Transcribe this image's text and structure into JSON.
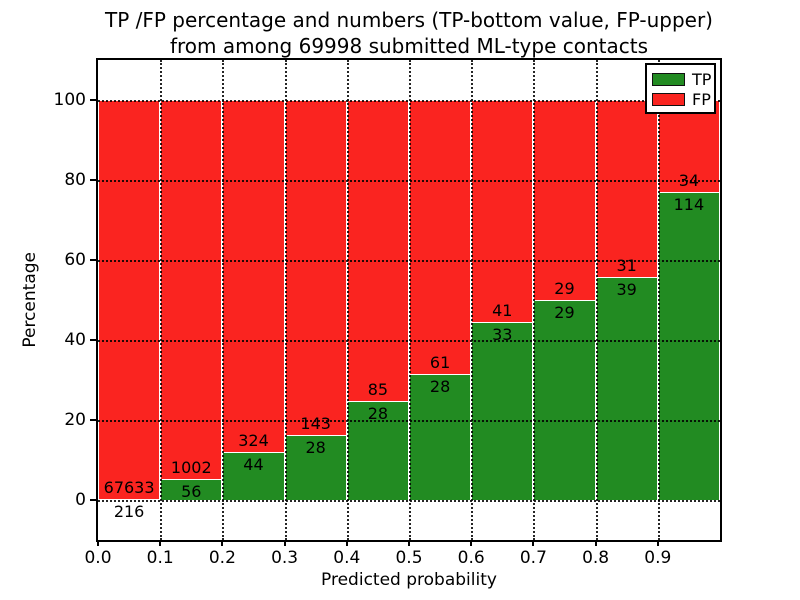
{
  "figure": {
    "title_line1": "TP /FP percentage and numbers (TP-bottom value, FP-upper)",
    "title_line2": "from among 69998 submitted ML-type contacts"
  },
  "axes": {
    "xlabel": "Predicted probability",
    "ylabel": "Percentage",
    "x_tick_labels": [
      "0.0",
      "0.1",
      "0.2",
      "0.3",
      "0.4",
      "0.5",
      "0.6",
      "0.7",
      "0.8",
      "0.9"
    ],
    "x_tick_values": [
      0.0,
      0.1,
      0.2,
      0.3,
      0.4,
      0.5,
      0.6,
      0.7,
      0.8,
      0.9
    ],
    "y_tick_labels": [
      "0",
      "20",
      "40",
      "60",
      "80",
      "100"
    ],
    "y_tick_values": [
      0,
      20,
      40,
      60,
      80,
      100
    ],
    "xlim": [
      0.0,
      1.0
    ],
    "ylim": [
      -10,
      110
    ],
    "grid": "dotted black, vertical at each 0.1, horizontal at each y tick"
  },
  "legend": {
    "position": "upper right",
    "items": [
      {
        "label": "TP",
        "color": "#228b22"
      },
      {
        "label": "FP",
        "color": "#fa2420"
      }
    ]
  },
  "chart_data": {
    "type": "bar",
    "stacked": true,
    "normalization": "each bin stacked to 100%",
    "title": "TP /FP percentage and numbers (TP-bottom value, FP-upper) from among 69998 submitted ML-type contacts",
    "xlabel": "Predicted probability",
    "ylabel": "Percentage",
    "xlim": [
      0.0,
      1.0
    ],
    "ylim": [
      -10,
      110
    ],
    "bin_edges": [
      0.0,
      0.1,
      0.2,
      0.3,
      0.4,
      0.5,
      0.6,
      0.7,
      0.8,
      0.9,
      1.0
    ],
    "series": [
      {
        "name": "TP",
        "stack_position": "bottom",
        "color": "#228b22",
        "counts": [
          216,
          56,
          44,
          28,
          28,
          28,
          33,
          29,
          39,
          114
        ]
      },
      {
        "name": "FP",
        "stack_position": "top",
        "color": "#fa2420",
        "counts": [
          67633,
          1002,
          324,
          143,
          85,
          61,
          41,
          29,
          31,
          34
        ]
      }
    ],
    "tp_percent_per_bin": [
      0.32,
      5.29,
      11.96,
      16.37,
      24.78,
      31.46,
      44.59,
      50.0,
      55.71,
      77.03
    ],
    "total_contacts": 69998
  }
}
